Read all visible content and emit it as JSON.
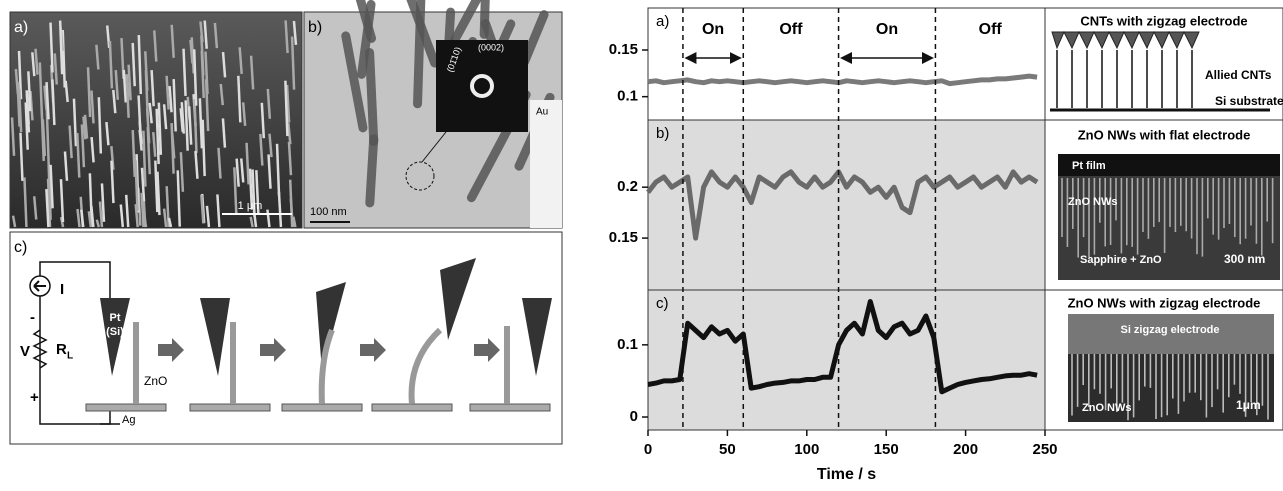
{
  "figure": {
    "panel_a": {
      "label": "a)",
      "scale": "1 μm"
    },
    "panel_b": {
      "label": "b)",
      "diffraction": [
        "(01̄10)",
        "(0002)"
      ],
      "scale": "100 nm",
      "electrode": "Au"
    },
    "panel_c": {
      "label": "c)",
      "current": "I",
      "minus": "-",
      "voltage": "V",
      "resistor": "R",
      "subscript": "L",
      "plus": "+",
      "tip": "Pt",
      "tip_material": "(Si)",
      "wire": "ZnO",
      "substrate": "Ag"
    }
  },
  "chart_data": [
    {
      "type": "line",
      "panel": "a)",
      "x": [
        0,
        5,
        10,
        15,
        20,
        25,
        30,
        35,
        40,
        45,
        50,
        55,
        60,
        65,
        70,
        75,
        80,
        85,
        90,
        95,
        100,
        105,
        110,
        115,
        120,
        125,
        130,
        135,
        140,
        145,
        150,
        155,
        160,
        165,
        170,
        175,
        180,
        185,
        190,
        195,
        200,
        205,
        210,
        215,
        220,
        225,
        230,
        235,
        240,
        245
      ],
      "series": [
        {
          "color": "#7a7a7a",
          "values": [
            0.116,
            0.117,
            0.115,
            0.116,
            0.117,
            0.118,
            0.116,
            0.115,
            0.117,
            0.116,
            0.117,
            0.116,
            0.115,
            0.116,
            0.117,
            0.116,
            0.115,
            0.116,
            0.117,
            0.116,
            0.115,
            0.116,
            0.117,
            0.116,
            0.115,
            0.117,
            0.116,
            0.115,
            0.116,
            0.117,
            0.116,
            0.115,
            0.116,
            0.117,
            0.116,
            0.115,
            0.116,
            0.117,
            0.114,
            0.115,
            0.116,
            0.117,
            0.118,
            0.118,
            0.119,
            0.119,
            0.12,
            0.121,
            0.122,
            0.121
          ]
        }
      ],
      "xlim": [
        0,
        250
      ],
      "ylim": [
        0.075,
        0.195
      ],
      "yticks": [
        0.1,
        0.15
      ],
      "annotations": [
        "On",
        "Off",
        "On",
        "Off"
      ],
      "phase_edges": [
        22,
        60,
        120,
        181
      ],
      "inset": {
        "title": "CNTs with zigzag electrode",
        "labels": [
          "Allied CNTs",
          "Si substrate"
        ]
      }
    },
    {
      "type": "line",
      "panel": "b)",
      "x": [
        0,
        5,
        10,
        15,
        20,
        25,
        30,
        35,
        40,
        45,
        50,
        55,
        60,
        65,
        70,
        75,
        80,
        85,
        90,
        95,
        100,
        105,
        110,
        115,
        120,
        125,
        130,
        135,
        140,
        145,
        150,
        155,
        160,
        165,
        170,
        175,
        180,
        185,
        190,
        195,
        200,
        205,
        210,
        215,
        220,
        225,
        230,
        235,
        240,
        245
      ],
      "series": [
        {
          "color": "#6a6a6a",
          "values": [
            0.195,
            0.205,
            0.21,
            0.2,
            0.205,
            0.21,
            0.15,
            0.2,
            0.215,
            0.205,
            0.2,
            0.21,
            0.2,
            0.185,
            0.21,
            0.205,
            0.2,
            0.21,
            0.215,
            0.205,
            0.2,
            0.21,
            0.2,
            0.205,
            0.215,
            0.2,
            0.21,
            0.205,
            0.195,
            0.2,
            0.19,
            0.2,
            0.18,
            0.175,
            0.205,
            0.21,
            0.2,
            0.205,
            0.21,
            0.2,
            0.205,
            0.21,
            0.2,
            0.205,
            0.21,
            0.2,
            0.215,
            0.205,
            0.21,
            0.205
          ]
        }
      ],
      "xlim": [
        0,
        250
      ],
      "ylim": [
        0.099,
        0.266
      ],
      "yticks": [
        0.15,
        0.2
      ],
      "inset": {
        "title": "ZnO NWs with flat electrode",
        "labels": [
          "Pt film",
          "ZnO NWs",
          "Sapphire + ZnO",
          "300 nm"
        ]
      }
    },
    {
      "type": "line",
      "panel": "c)",
      "x": [
        0,
        5,
        10,
        15,
        20,
        25,
        30,
        35,
        40,
        45,
        50,
        55,
        60,
        65,
        70,
        75,
        80,
        85,
        90,
        95,
        100,
        105,
        110,
        115,
        120,
        125,
        130,
        135,
        140,
        145,
        150,
        155,
        160,
        165,
        170,
        175,
        180,
        185,
        190,
        195,
        200,
        205,
        210,
        215,
        220,
        225,
        230,
        235,
        240,
        245
      ],
      "series": [
        {
          "color": "#111111",
          "values": [
            0.045,
            0.047,
            0.05,
            0.05,
            0.052,
            0.13,
            0.12,
            0.11,
            0.125,
            0.115,
            0.12,
            0.105,
            0.115,
            0.04,
            0.042,
            0.045,
            0.047,
            0.048,
            0.05,
            0.05,
            0.052,
            0.052,
            0.055,
            0.055,
            0.1,
            0.12,
            0.13,
            0.115,
            0.16,
            0.12,
            0.11,
            0.125,
            0.13,
            0.115,
            0.12,
            0.14,
            0.11,
            0.035,
            0.04,
            0.045,
            0.048,
            0.05,
            0.052,
            0.053,
            0.055,
            0.057,
            0.058,
            0.058,
            0.06,
            0.058
          ]
        }
      ],
      "xlim": [
        0,
        250
      ],
      "ylim": [
        -0.018,
        0.176
      ],
      "yticks": [
        0,
        0.1
      ],
      "xticks": [
        0,
        50,
        100,
        150,
        200,
        250
      ],
      "xlabel": "Time / s",
      "inset": {
        "title": "ZnO NWs with zigzag electrode",
        "labels": [
          "Si zigzag electrode",
          "ZnO NWs",
          "1μm"
        ]
      }
    }
  ]
}
